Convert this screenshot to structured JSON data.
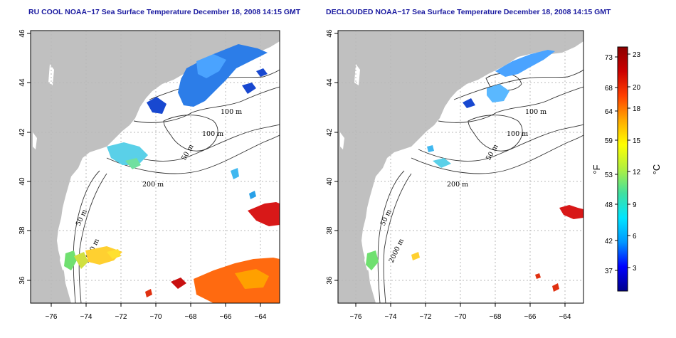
{
  "panels": [
    {
      "title": "RU COOL NOAA−17 Sea Surface Temperature December 18, 2008 14:15 GMT",
      "x_ticks": [
        "−76",
        "−74",
        "−72",
        "−70",
        "−68",
        "−66",
        "−64"
      ],
      "y_ticks": [
        "46",
        "44",
        "42",
        "40",
        "38",
        "36"
      ],
      "contour_labels": [
        "100 m",
        "100 m",
        "50 m",
        "200 m",
        "50 m",
        "2000 m"
      ]
    },
    {
      "title": "DECLOUDED NOAA−17 Sea Surface Temperature December 18, 2008 14:15 GMT",
      "x_ticks": [
        "−76",
        "−74",
        "−72",
        "−70",
        "−68",
        "−66",
        "−64"
      ],
      "y_ticks": [
        "46",
        "44",
        "42",
        "40",
        "38",
        "36"
      ],
      "contour_labels": [
        "100 m",
        "100 m",
        "50 m",
        "200 m",
        "50 m",
        "2000 m"
      ]
    }
  ],
  "colorbar": {
    "fahrenheit_label": "°F",
    "celsius_label": "°C",
    "fahrenheit_ticks": [
      "73",
      "68",
      "64",
      "59",
      "53",
      "48",
      "42",
      "37"
    ],
    "celsius_ticks": [
      "23",
      "20",
      "18",
      "15",
      "12",
      "9",
      "6",
      "3"
    ],
    "gradient": [
      "#00008b",
      "#0000ff",
      "#0096ff",
      "#00e5ff",
      "#40e0a0",
      "#b0f040",
      "#ffff00",
      "#ffaa00",
      "#ff4000",
      "#cc0000",
      "#8b0000"
    ]
  },
  "colors": {
    "land": "#c0c0c0",
    "ocean": "#ffffff",
    "grid": "#b8b8b8",
    "title": "#1a1aa0"
  }
}
